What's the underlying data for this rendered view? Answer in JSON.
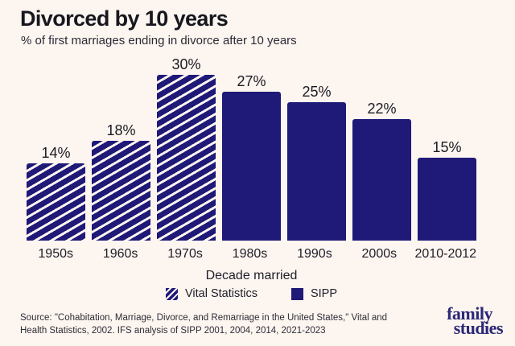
{
  "colors": {
    "background": "#fdf5ef",
    "bar_navy": "#1f1978",
    "title_text": "#17171f",
    "body_text": "#1e1e29",
    "source_text": "#2d2d38",
    "logo_navy": "#2b2878"
  },
  "header": {
    "title": "Divorced by 10 years",
    "subtitle": "% of first marriages ending in divorce after 10 years"
  },
  "chart_data": {
    "type": "bar",
    "title": "Divorced by 10 years",
    "subtitle": "% of first marriages ending in divorce after 10 years",
    "categories": [
      "1950s",
      "1960s",
      "1970s",
      "1980s",
      "1990s",
      "2000s",
      "2010-2012"
    ],
    "values": [
      14,
      18,
      30,
      27,
      25,
      22,
      15
    ],
    "value_labels": [
      "14%",
      "18%",
      "30%",
      "27%",
      "25%",
      "22%",
      "15%"
    ],
    "series": [
      {
        "name": "Vital Statistics",
        "style": "hatched",
        "categories": [
          "1950s",
          "1960s",
          "1970s"
        ],
        "values": [
          14,
          18,
          30
        ]
      },
      {
        "name": "SIPP",
        "style": "solid",
        "categories": [
          "1980s",
          "1990s",
          "2000s",
          "2010-2012"
        ],
        "values": [
          27,
          25,
          22,
          15
        ]
      }
    ],
    "xlabel": "Decade married",
    "ylabel": "",
    "ylim": [
      0,
      32
    ],
    "grid": false,
    "legend_position": "bottom"
  },
  "legend": {
    "items": [
      {
        "label": "Vital Statistics",
        "style": "hatched"
      },
      {
        "label": "SIPP",
        "style": "solid"
      }
    ]
  },
  "footer": {
    "source_line1": "Source: \"Cohabitation, Marriage, Divorce, and Remarriage in the United States,\" Vital and",
    "source_line2": "Health Statistics, 2002. IFS analysis of SIPP 2001, 2004, 2014, 2021-2023",
    "logo": {
      "line1": "family",
      "line2": "studies"
    }
  }
}
